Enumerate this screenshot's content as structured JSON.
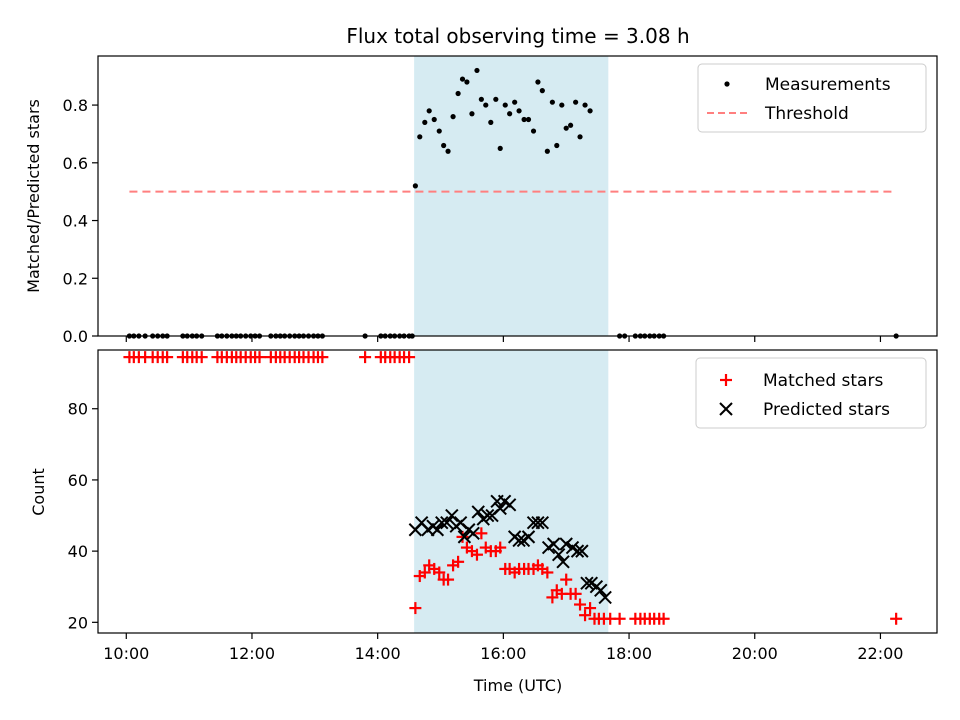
{
  "chart_data": {
    "type": "scatter",
    "title": "Flux total observing time = 3.08 h",
    "xlabel": "Time (UTC)",
    "x_unit": "hours UTC",
    "xlim": [
      9.55,
      22.9
    ],
    "x_ticks": [
      {
        "value": 10,
        "label": "10:00"
      },
      {
        "value": 12,
        "label": "12:00"
      },
      {
        "value": 14,
        "label": "14:00"
      },
      {
        "value": 16,
        "label": "16:00"
      },
      {
        "value": 18,
        "label": "18:00"
      },
      {
        "value": 20,
        "label": "20:00"
      },
      {
        "value": 22,
        "label": "22:00"
      }
    ],
    "shaded_region": {
      "x_start": 14.58,
      "x_end": 17.67,
      "color": "#add8e6"
    },
    "panels": [
      {
        "id": "ratio",
        "ylabel": "Matched/Predicted stars",
        "ylim": [
          0,
          0.97
        ],
        "y_ticks": [
          {
            "value": 0.0,
            "label": "0.0"
          },
          {
            "value": 0.2,
            "label": "0.2"
          },
          {
            "value": 0.4,
            "label": "0.4"
          },
          {
            "value": 0.6,
            "label": "0.6"
          },
          {
            "value": 0.8,
            "label": "0.8"
          }
        ],
        "legend_position": "top-right",
        "series": [
          {
            "name": "Measurements",
            "marker": "dot",
            "color": "#000000",
            "points": [
              [
                10.05,
                0
              ],
              [
                10.12,
                0
              ],
              [
                10.2,
                0
              ],
              [
                10.3,
                0
              ],
              [
                10.42,
                0
              ],
              [
                10.5,
                0
              ],
              [
                10.58,
                0
              ],
              [
                10.65,
                0
              ],
              [
                10.9,
                0
              ],
              [
                10.97,
                0
              ],
              [
                11.05,
                0
              ],
              [
                11.12,
                0
              ],
              [
                11.2,
                0
              ],
              [
                11.45,
                0
              ],
              [
                11.52,
                0
              ],
              [
                11.6,
                0
              ],
              [
                11.68,
                0
              ],
              [
                11.75,
                0
              ],
              [
                11.82,
                0
              ],
              [
                11.9,
                0
              ],
              [
                11.98,
                0
              ],
              [
                12.05,
                0
              ],
              [
                12.12,
                0
              ],
              [
                12.3,
                0
              ],
              [
                12.38,
                0
              ],
              [
                12.45,
                0
              ],
              [
                12.52,
                0
              ],
              [
                12.6,
                0
              ],
              [
                12.68,
                0
              ],
              [
                12.75,
                0
              ],
              [
                12.82,
                0
              ],
              [
                12.9,
                0
              ],
              [
                12.98,
                0
              ],
              [
                13.05,
                0
              ],
              [
                13.12,
                0
              ],
              [
                13.8,
                0
              ],
              [
                14.05,
                0
              ],
              [
                14.12,
                0
              ],
              [
                14.2,
                0
              ],
              [
                14.27,
                0
              ],
              [
                14.35,
                0
              ],
              [
                14.42,
                0
              ],
              [
                14.5,
                0
              ],
              [
                14.55,
                0
              ],
              [
                14.6,
                0.52
              ],
              [
                14.67,
                0.69
              ],
              [
                14.75,
                0.74
              ],
              [
                14.82,
                0.78
              ],
              [
                14.9,
                0.75
              ],
              [
                14.98,
                0.71
              ],
              [
                15.05,
                0.66
              ],
              [
                15.12,
                0.64
              ],
              [
                15.2,
                0.76
              ],
              [
                15.28,
                0.84
              ],
              [
                15.35,
                0.89
              ],
              [
                15.42,
                0.88
              ],
              [
                15.5,
                0.77
              ],
              [
                15.58,
                0.92
              ],
              [
                15.65,
                0.82
              ],
              [
                15.72,
                0.8
              ],
              [
                15.8,
                0.74
              ],
              [
                15.88,
                0.82
              ],
              [
                15.95,
                0.65
              ],
              [
                16.03,
                0.8
              ],
              [
                16.1,
                0.77
              ],
              [
                16.18,
                0.81
              ],
              [
                16.25,
                0.78
              ],
              [
                16.33,
                0.75
              ],
              [
                16.4,
                0.75
              ],
              [
                16.48,
                0.71
              ],
              [
                16.55,
                0.88
              ],
              [
                16.62,
                0.85
              ],
              [
                16.7,
                0.64
              ],
              [
                16.78,
                0.81
              ],
              [
                16.85,
                0.66
              ],
              [
                16.93,
                0.8
              ],
              [
                17.0,
                0.72
              ],
              [
                17.07,
                0.73
              ],
              [
                17.15,
                0.81
              ],
              [
                17.22,
                0.69
              ],
              [
                17.3,
                0.8
              ],
              [
                17.38,
                0.78
              ],
              [
                17.85,
                0
              ],
              [
                17.93,
                0
              ],
              [
                18.1,
                0
              ],
              [
                18.18,
                0
              ],
              [
                18.25,
                0
              ],
              [
                18.33,
                0
              ],
              [
                18.4,
                0
              ],
              [
                18.48,
                0
              ],
              [
                18.55,
                0
              ],
              [
                22.25,
                0
              ]
            ]
          },
          {
            "name": "Threshold",
            "marker": "dashed-line",
            "color": "#ff7f7f",
            "points": [
              [
                10.05,
                0.5
              ],
              [
                22.25,
                0.5
              ]
            ]
          }
        ]
      },
      {
        "id": "count",
        "ylabel": "Count",
        "ylim": [
          17,
          96.5
        ],
        "y_ticks": [
          {
            "value": 20,
            "label": "20"
          },
          {
            "value": 40,
            "label": "40"
          },
          {
            "value": 60,
            "label": "60"
          },
          {
            "value": 80,
            "label": "80"
          }
        ],
        "legend_position": "top-right",
        "series": [
          {
            "name": "Matched stars",
            "marker": "plus",
            "color": "#ff0000",
            "points": [
              [
                10.05,
                94.5
              ],
              [
                10.12,
                94.5
              ],
              [
                10.2,
                94.5
              ],
              [
                10.3,
                94.5
              ],
              [
                10.42,
                94.5
              ],
              [
                10.5,
                94.5
              ],
              [
                10.58,
                94.5
              ],
              [
                10.65,
                94.5
              ],
              [
                10.9,
                94.5
              ],
              [
                10.97,
                94.5
              ],
              [
                11.05,
                94.5
              ],
              [
                11.12,
                94.5
              ],
              [
                11.2,
                94.5
              ],
              [
                11.45,
                94.5
              ],
              [
                11.52,
                94.5
              ],
              [
                11.6,
                94.5
              ],
              [
                11.68,
                94.5
              ],
              [
                11.75,
                94.5
              ],
              [
                11.82,
                94.5
              ],
              [
                11.9,
                94.5
              ],
              [
                11.98,
                94.5
              ],
              [
                12.05,
                94.5
              ],
              [
                12.12,
                94.5
              ],
              [
                12.3,
                94.5
              ],
              [
                12.38,
                94.5
              ],
              [
                12.45,
                94.5
              ],
              [
                12.52,
                94.5
              ],
              [
                12.6,
                94.5
              ],
              [
                12.68,
                94.5
              ],
              [
                12.75,
                94.5
              ],
              [
                12.82,
                94.5
              ],
              [
                12.9,
                94.5
              ],
              [
                12.98,
                94.5
              ],
              [
                13.05,
                94.5
              ],
              [
                13.12,
                94.5
              ],
              [
                13.8,
                94.5
              ],
              [
                14.05,
                94.5
              ],
              [
                14.12,
                94.5
              ],
              [
                14.2,
                94.5
              ],
              [
                14.27,
                94.5
              ],
              [
                14.35,
                94.5
              ],
              [
                14.42,
                94.5
              ],
              [
                14.5,
                94.5
              ],
              [
                14.6,
                24
              ],
              [
                14.67,
                33
              ],
              [
                14.75,
                34
              ],
              [
                14.82,
                36
              ],
              [
                14.9,
                35
              ],
              [
                14.98,
                34
              ],
              [
                15.05,
                32
              ],
              [
                15.12,
                32
              ],
              [
                15.2,
                36
              ],
              [
                15.28,
                37
              ],
              [
                15.35,
                44
              ],
              [
                15.42,
                41
              ],
              [
                15.5,
                40
              ],
              [
                15.58,
                39
              ],
              [
                15.65,
                45
              ],
              [
                15.72,
                41
              ],
              [
                15.8,
                40
              ],
              [
                15.88,
                40
              ],
              [
                15.95,
                41
              ],
              [
                16.03,
                35
              ],
              [
                16.1,
                35
              ],
              [
                16.18,
                34
              ],
              [
                16.25,
                35
              ],
              [
                16.33,
                35
              ],
              [
                16.4,
                35
              ],
              [
                16.48,
                35
              ],
              [
                16.55,
                36
              ],
              [
                16.62,
                35
              ],
              [
                16.7,
                34
              ],
              [
                16.78,
                27
              ],
              [
                16.85,
                29
              ],
              [
                16.93,
                28
              ],
              [
                17.0,
                32
              ],
              [
                17.07,
                28
              ],
              [
                17.15,
                28
              ],
              [
                17.22,
                25
              ],
              [
                17.3,
                22
              ],
              [
                17.38,
                24
              ],
              [
                17.45,
                21
              ],
              [
                17.52,
                21
              ],
              [
                17.6,
                21
              ],
              [
                17.7,
                21
              ],
              [
                17.85,
                21
              ],
              [
                18.1,
                21
              ],
              [
                18.18,
                21
              ],
              [
                18.25,
                21
              ],
              [
                18.33,
                21
              ],
              [
                18.4,
                21
              ],
              [
                18.48,
                21
              ],
              [
                18.55,
                21
              ],
              [
                22.25,
                21
              ]
            ]
          },
          {
            "name": "Predicted stars",
            "marker": "x",
            "color": "#000000",
            "points": [
              [
                14.6,
                46
              ],
              [
                14.7,
                48
              ],
              [
                14.8,
                46
              ],
              [
                14.88,
                47
              ],
              [
                14.95,
                46
              ],
              [
                15.02,
                48
              ],
              [
                15.1,
                48
              ],
              [
                15.18,
                50
              ],
              [
                15.25,
                47
              ],
              [
                15.32,
                48
              ],
              [
                15.38,
                44
              ],
              [
                15.45,
                46
              ],
              [
                15.52,
                45
              ],
              [
                15.6,
                51
              ],
              [
                15.68,
                49
              ],
              [
                15.75,
                50
              ],
              [
                15.82,
                50
              ],
              [
                15.9,
                54
              ],
              [
                15.95,
                52
              ],
              [
                16.02,
                54
              ],
              [
                16.1,
                53
              ],
              [
                16.18,
                44
              ],
              [
                16.25,
                43
              ],
              [
                16.32,
                43
              ],
              [
                16.4,
                44
              ],
              [
                16.48,
                48
              ],
              [
                16.55,
                48
              ],
              [
                16.62,
                48
              ],
              [
                16.72,
                41
              ],
              [
                16.8,
                42
              ],
              [
                16.88,
                39
              ],
              [
                16.95,
                37
              ],
              [
                17.0,
                42
              ],
              [
                17.1,
                41
              ],
              [
                17.18,
                40
              ],
              [
                17.25,
                40
              ],
              [
                17.33,
                31
              ],
              [
                17.4,
                31
              ],
              [
                17.48,
                30
              ],
              [
                17.55,
                29
              ],
              [
                17.62,
                27
              ]
            ]
          }
        ]
      }
    ]
  }
}
